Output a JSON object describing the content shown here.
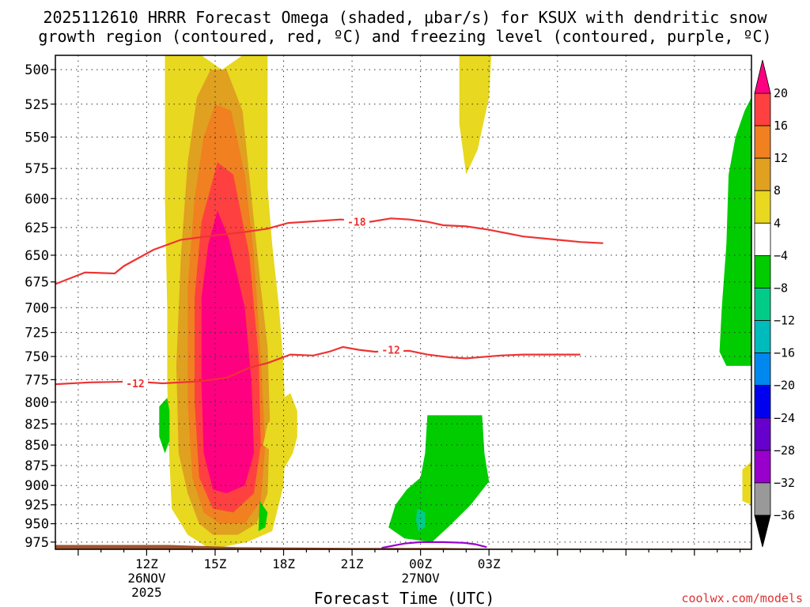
{
  "chart_data": {
    "type": "heatmap",
    "title_line1": "2025112610 HRRR Forecast Omega (shaded, μbar/s) for KSUX with dendritic snow",
    "title_line2": "growth region (contoured, red, ºC) and freezing level (contoured, purple, ºC)",
    "xlabel": "Forecast Time (UTC)",
    "ylabel": "",
    "watermark": "coolwx.com/models",
    "x_range_hours": [
      8,
      38.5
    ],
    "y_range_hpa": [
      490,
      985
    ],
    "x_ticks": [
      {
        "hour": 12,
        "label": "12Z",
        "date": "26NOV",
        "year": "2025"
      },
      {
        "hour": 15,
        "label": "15Z"
      },
      {
        "hour": 18,
        "label": "18Z"
      },
      {
        "hour": 21,
        "label": "21Z"
      },
      {
        "hour": 24,
        "label": "00Z",
        "date": "27NOV"
      },
      {
        "hour": 27,
        "label": "03Z"
      }
    ],
    "y_ticks": [
      500,
      525,
      550,
      575,
      600,
      625,
      650,
      675,
      700,
      725,
      750,
      775,
      800,
      825,
      850,
      875,
      900,
      925,
      950,
      975
    ],
    "colorbar": {
      "labels": [
        "20",
        "16",
        "12",
        "8",
        "4",
        "−4",
        "−8",
        "−12",
        "−16",
        "−20",
        "−24",
        "−28",
        "−32",
        "−36"
      ],
      "colors": [
        "#ff0080",
        "#ff4040",
        "#f08020",
        "#e0a020",
        "#e8d820",
        "#ffffff",
        "#00cc00",
        "#00cc88",
        "#00bbbb",
        "#0088ee",
        "#0000ee",
        "#6600cc",
        "#9900cc",
        "#999999",
        "#000000"
      ]
    },
    "omega_regions": [
      {
        "level": "4 to 8",
        "color": "#e8d820",
        "points": [
          [
            12.6,
            490
          ],
          [
            14.4,
            490
          ],
          [
            15.3,
            500
          ],
          [
            16.2,
            490
          ],
          [
            17.3,
            490
          ],
          [
            17.3,
            590
          ],
          [
            17.5,
            640
          ],
          [
            17.8,
            700
          ],
          [
            18.0,
            760
          ],
          [
            18.1,
            840
          ],
          [
            18.0,
            900
          ],
          [
            17.5,
            960
          ],
          [
            16.4,
            975
          ],
          [
            14.8,
            985
          ],
          [
            13.8,
            965
          ],
          [
            13.1,
            930
          ],
          [
            13.0,
            870
          ],
          [
            12.9,
            780
          ],
          [
            12.9,
            700
          ],
          [
            12.8,
            600
          ],
          [
            12.8,
            490
          ]
        ]
      },
      {
        "level": "8 to 12",
        "color": "#e0a020",
        "points": [
          [
            14.8,
            500
          ],
          [
            15.5,
            500
          ],
          [
            16.2,
            530
          ],
          [
            16.6,
            600
          ],
          [
            17.0,
            680
          ],
          [
            17.3,
            740
          ],
          [
            17.4,
            820
          ],
          [
            17.3,
            910
          ],
          [
            16.8,
            950
          ],
          [
            16.0,
            965
          ],
          [
            14.9,
            965
          ],
          [
            14.3,
            950
          ],
          [
            13.8,
            910
          ],
          [
            13.4,
            860
          ],
          [
            13.3,
            760
          ],
          [
            13.5,
            650
          ],
          [
            13.8,
            570
          ],
          [
            14.2,
            520
          ]
        ]
      },
      {
        "level": "12 to 16",
        "color": "#f08020",
        "points": [
          [
            15.0,
            525
          ],
          [
            15.7,
            530
          ],
          [
            16.3,
            580
          ],
          [
            16.7,
            650
          ],
          [
            17.0,
            750
          ],
          [
            17.2,
            850
          ],
          [
            17.0,
            920
          ],
          [
            16.3,
            950
          ],
          [
            15.2,
            950
          ],
          [
            14.5,
            935
          ],
          [
            14.0,
            890
          ],
          [
            13.8,
            800
          ],
          [
            13.8,
            680
          ],
          [
            14.1,
            600
          ],
          [
            14.5,
            550
          ]
        ]
      },
      {
        "level": "16 to 20",
        "color": "#ff4040",
        "points": [
          [
            15.1,
            570
          ],
          [
            15.8,
            580
          ],
          [
            16.5,
            650
          ],
          [
            16.9,
            750
          ],
          [
            17.0,
            850
          ],
          [
            16.7,
            910
          ],
          [
            15.8,
            935
          ],
          [
            14.9,
            930
          ],
          [
            14.3,
            890
          ],
          [
            14.1,
            800
          ],
          [
            14.1,
            690
          ],
          [
            14.4,
            620
          ]
        ]
      },
      {
        "level": "> 20",
        "color": "#ff0080",
        "points": [
          [
            15.1,
            610
          ],
          [
            15.6,
            635
          ],
          [
            16.3,
            700
          ],
          [
            16.6,
            780
          ],
          [
            16.7,
            860
          ],
          [
            16.3,
            900
          ],
          [
            15.5,
            910
          ],
          [
            14.9,
            905
          ],
          [
            14.5,
            860
          ],
          [
            14.4,
            780
          ],
          [
            14.4,
            690
          ],
          [
            14.7,
            640
          ]
        ]
      },
      {
        "level": "4 to 8",
        "color": "#e8d820",
        "points": [
          [
            18.0,
            795
          ],
          [
            18.3,
            790
          ],
          [
            18.6,
            810
          ],
          [
            18.6,
            840
          ],
          [
            18.4,
            860
          ],
          [
            18.0,
            880
          ],
          [
            17.6,
            860
          ],
          [
            17.1,
            850
          ],
          [
            17.3,
            825
          ],
          [
            17.7,
            812
          ]
        ]
      },
      {
        "level": "4 to 8",
        "color": "#e8d820",
        "points": [
          [
            25.7,
            490
          ],
          [
            27.1,
            490
          ],
          [
            27.0,
            520
          ],
          [
            26.5,
            560
          ],
          [
            26.0,
            580
          ],
          [
            25.7,
            540
          ]
        ]
      },
      {
        "level": "4 to 8",
        "color": "#e8d820",
        "points": [
          [
            38.1,
            880
          ],
          [
            38.5,
            870
          ],
          [
            38.5,
            925
          ],
          [
            38.1,
            920
          ]
        ]
      },
      {
        "level": "-4 to -8",
        "color": "#00cc00",
        "points": [
          [
            12.55,
            805
          ],
          [
            12.9,
            795
          ],
          [
            13.0,
            810
          ],
          [
            13.0,
            845
          ],
          [
            12.8,
            860
          ],
          [
            12.55,
            840
          ]
        ]
      },
      {
        "level": "-4 to -8",
        "color": "#00cc00",
        "points": [
          [
            16.95,
            920
          ],
          [
            17.3,
            935
          ],
          [
            17.2,
            955
          ],
          [
            16.9,
            960
          ]
        ]
      },
      {
        "level": "-4 to -8",
        "color": "#00cc00",
        "points": [
          [
            24.3,
            815
          ],
          [
            26.7,
            815
          ],
          [
            26.8,
            860
          ],
          [
            27.0,
            895
          ],
          [
            26.2,
            925
          ],
          [
            25.2,
            955
          ],
          [
            24.5,
            975
          ],
          [
            23.3,
            970
          ],
          [
            22.6,
            955
          ],
          [
            22.9,
            925
          ],
          [
            23.4,
            905
          ],
          [
            24.0,
            890
          ],
          [
            24.2,
            860
          ]
        ]
      },
      {
        "level": "-8 to -12",
        "color": "#00cc88",
        "points": [
          [
            23.85,
            930
          ],
          [
            24.2,
            935
          ],
          [
            24.2,
            955
          ],
          [
            23.9,
            960
          ],
          [
            23.8,
            945
          ]
        ]
      },
      {
        "level": "-4 to -8",
        "color": "#00cc00",
        "points": [
          [
            38.5,
            520
          ],
          [
            38.5,
            760
          ],
          [
            37.4,
            760
          ],
          [
            37.1,
            745
          ],
          [
            37.2,
            700
          ],
          [
            37.4,
            640
          ],
          [
            37.5,
            580
          ],
          [
            37.8,
            550
          ],
          [
            38.2,
            530
          ]
        ]
      }
    ],
    "ground": {
      "color": "#a0522d",
      "points": [
        [
          8,
          979
        ],
        [
          13.0,
          979
        ],
        [
          16.0,
          982
        ],
        [
          21.0,
          983
        ],
        [
          25.0,
          983
        ],
        [
          27.0,
          984
        ],
        [
          38.5,
          984
        ],
        [
          38.5,
          990
        ],
        [
          8,
          990
        ]
      ]
    },
    "contours": [
      {
        "label": "-18",
        "color": "#ee3333",
        "label_at": [
          21.2,
          620
        ],
        "points": [
          [
            8,
            677
          ],
          [
            9.3,
            666
          ],
          [
            10.6,
            667
          ],
          [
            11.0,
            660
          ],
          [
            12.3,
            645
          ],
          [
            13.5,
            636
          ],
          [
            15.0,
            632
          ],
          [
            16.3,
            629
          ],
          [
            17.3,
            626
          ],
          [
            18.2,
            621
          ],
          [
            19.0,
            620
          ],
          [
            20.5,
            618
          ],
          [
            21.8,
            620
          ],
          [
            22.7,
            617
          ],
          [
            23.5,
            618
          ],
          [
            24.3,
            620
          ],
          [
            25.0,
            623
          ],
          [
            26.0,
            624
          ],
          [
            27.0,
            627
          ],
          [
            28.5,
            633
          ],
          [
            30.0,
            636
          ],
          [
            31.0,
            638
          ],
          [
            32.0,
            639
          ]
        ]
      },
      {
        "label": "-12",
        "color": "#ee3333",
        "label_at": [
          22.7,
          743
        ],
        "points": [
          [
            8,
            780
          ],
          [
            9.5,
            778
          ],
          [
            11.5,
            777
          ],
          [
            12.7,
            779
          ],
          [
            14.2,
            777
          ],
          [
            15.5,
            773
          ],
          [
            16.5,
            762
          ],
          [
            17.3,
            757
          ],
          [
            18.3,
            748
          ],
          [
            19.3,
            749
          ],
          [
            20.0,
            745
          ],
          [
            20.6,
            740
          ],
          [
            21.3,
            743
          ],
          [
            22.0,
            745
          ],
          [
            23.5,
            744
          ],
          [
            24.3,
            748
          ],
          [
            25.3,
            751
          ],
          [
            26.0,
            752
          ],
          [
            27.5,
            749
          ],
          [
            28.5,
            748
          ],
          [
            29.5,
            748
          ],
          [
            31.0,
            748
          ]
        ]
      },
      {
        "label": "-12",
        "color": "#ee3333",
        "label_at": [
          11.5,
          779
        ],
        "points": []
      },
      {
        "label": "",
        "color": "#9900cc",
        "label_at": null,
        "points": [
          [
            22.3,
            983
          ],
          [
            23.3,
            977
          ],
          [
            24.0,
            975
          ],
          [
            25.0,
            975
          ],
          [
            25.9,
            976
          ],
          [
            26.4,
            978
          ],
          [
            26.9,
            982
          ]
        ]
      }
    ]
  }
}
